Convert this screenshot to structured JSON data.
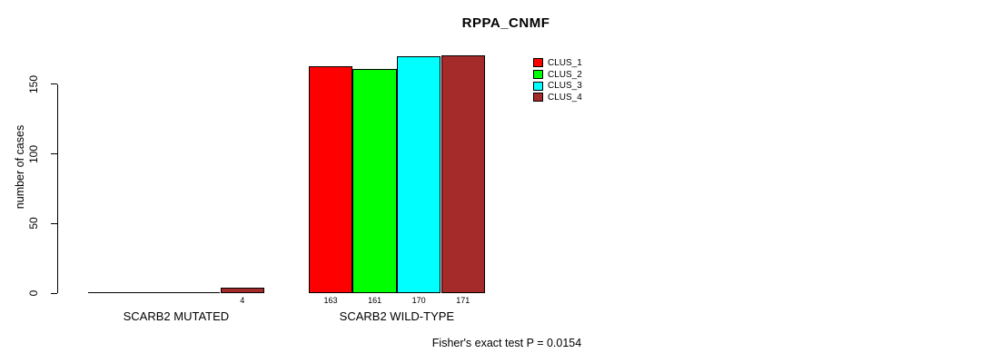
{
  "chart_data": {
    "type": "bar",
    "title": "RPPA_CNMF",
    "ylabel": "number of cases",
    "xlabel": "",
    "categories": [
      "SCARB2 MUTATED",
      "SCARB2 WILD-TYPE"
    ],
    "series": [
      {
        "name": "CLUS_1",
        "color": "#ff0000",
        "values": [
          0,
          163
        ]
      },
      {
        "name": "CLUS_2",
        "color": "#00ff00",
        "values": [
          0,
          161
        ]
      },
      {
        "name": "CLUS_3",
        "color": "#00ffff",
        "values": [
          0,
          170
        ]
      },
      {
        "name": "CLUS_4",
        "color": "#a52a2a",
        "values": [
          4,
          171
        ]
      }
    ],
    "y_ticks": [
      0,
      50,
      100,
      150
    ],
    "ylim": [
      0,
      175
    ],
    "grid": false,
    "legend_position": "top-right",
    "bar_value_labels_shown": true
  },
  "annotation": {
    "fisher_note": "Fisher's exact test P = 0.0154"
  }
}
